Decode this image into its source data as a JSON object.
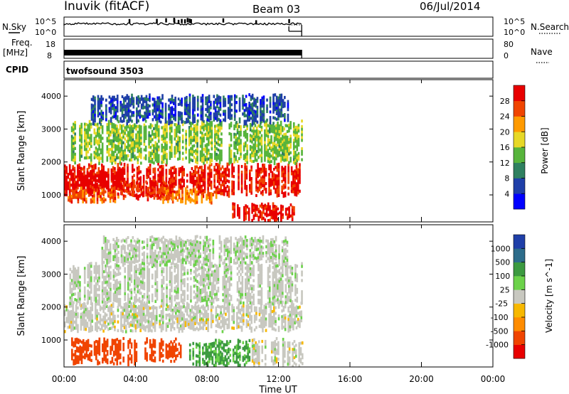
{
  "header": {
    "station": "Inuvik (fitACF)",
    "beam": "Beam 03",
    "date": "06/Jul/2014"
  },
  "panels": {
    "nsky": {
      "label": "N.Sky",
      "ticks": [
        "10^5",
        "10^0"
      ],
      "right_label": "N.Search"
    },
    "freq": {
      "label_top": "Freq.",
      "label_bottom": "[MHz]",
      "ticks": [
        "18",
        "8"
      ],
      "right_ticks": [
        "80",
        "0"
      ],
      "right_label": "Nave"
    },
    "cpid": {
      "label": "CPID",
      "value": "twofsound 3503"
    }
  },
  "chart_data": [
    {
      "type": "heatmap",
      "title": "",
      "xlabel": "Time UT",
      "ylabel": "Slant Range [km]",
      "x_ticks": [
        "00:00",
        "04:00",
        "08:00",
        "12:00",
        "16:00",
        "20:00",
        "00:00"
      ],
      "y_ticks": [
        "1000",
        "2000",
        "3000",
        "4000"
      ],
      "xlim": [
        0,
        24
      ],
      "ylim": [
        180,
        4500
      ],
      "data_end_hour": 13.3,
      "colorbar": {
        "label": "Power [dB]",
        "ticks": [
          "4",
          "8",
          "12",
          "16",
          "20",
          "24",
          "28"
        ],
        "range": [
          0,
          30
        ]
      },
      "colors": [
        "#0000ff",
        "#1f3fa8",
        "#2f8060",
        "#57b43c",
        "#e7d827",
        "#ff9a00",
        "#f04400",
        "#e80000"
      ],
      "bands": [
        {
          "t": [
            0.0,
            13.3
          ],
          "r": [
            1000,
            1900
          ],
          "value": 27
        },
        {
          "t": [
            0.0,
            3.2
          ],
          "r": [
            1200,
            1700
          ],
          "value": 29
        },
        {
          "t": [
            0.2,
            3.0
          ],
          "r": [
            800,
            1200
          ],
          "value": 24
        },
        {
          "t": [
            3.2,
            6.0
          ],
          "r": [
            900,
            1350
          ],
          "value": 26
        },
        {
          "t": [
            5.5,
            8.5
          ],
          "r": [
            800,
            1150
          ],
          "value": 22
        },
        {
          "t": [
            9.4,
            12.9
          ],
          "r": [
            250,
            700
          ],
          "value": 28
        },
        {
          "t": [
            0.3,
            13.3
          ],
          "r": [
            2000,
            3200
          ],
          "value": 14
        },
        {
          "t": [
            1.5,
            12.5
          ],
          "r": [
            3200,
            4000
          ],
          "value": 6
        }
      ]
    },
    {
      "type": "heatmap",
      "title": "",
      "xlabel": "Time UT",
      "ylabel": "Slant Range [km]",
      "x_ticks": [
        "00:00",
        "04:00",
        "08:00",
        "12:00",
        "16:00",
        "20:00",
        "00:00"
      ],
      "y_ticks": [
        "1000",
        "2000",
        "3000",
        "4000"
      ],
      "xlim": [
        0,
        24
      ],
      "ylim": [
        180,
        4500
      ],
      "data_end_hour": 13.3,
      "colorbar": {
        "label": "Velocity [m s^-1]",
        "ticks": [
          "1000",
          "500",
          "100",
          "25",
          "-25",
          "-100",
          "-500",
          "-1000"
        ],
        "range": [
          -1200,
          1200
        ]
      },
      "colors": [
        "#e80000",
        "#f04400",
        "#ff8c00",
        "#f7b800",
        "#c8c8c0",
        "#6cd24a",
        "#3c9a40",
        "#2d6c8a",
        "#1f3fa8"
      ],
      "bands": [
        {
          "t": [
            0.0,
            13.3
          ],
          "r": [
            1300,
            2100
          ],
          "value": 0
        },
        {
          "t": [
            0.3,
            13.3
          ],
          "r": [
            2100,
            3300
          ],
          "value": 5
        },
        {
          "t": [
            0.4,
            4.0
          ],
          "r": [
            300,
            1000
          ],
          "value": -300
        },
        {
          "t": [
            4.5,
            6.5
          ],
          "r": [
            400,
            1000
          ],
          "value": -300
        },
        {
          "t": [
            7.0,
            10.5
          ],
          "r": [
            250,
            950
          ],
          "value": 60
        },
        {
          "t": [
            10.5,
            13.3
          ],
          "r": [
            250,
            1000
          ],
          "value": 0
        },
        {
          "t": [
            2.0,
            12.5
          ],
          "r": [
            3300,
            4100
          ],
          "value": 10
        }
      ]
    }
  ]
}
